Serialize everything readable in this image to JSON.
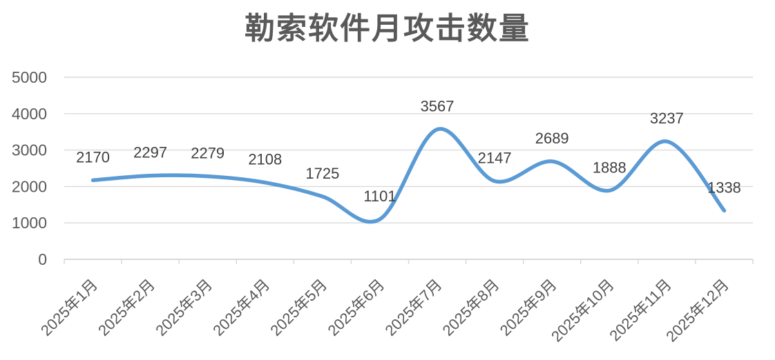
{
  "chart_data": {
    "type": "line",
    "title": "勒索软件月攻击数量",
    "categories": [
      "2025年1月",
      "2025年2月",
      "2025年3月",
      "2025年4月",
      "2025年5月",
      "2025年6月",
      "2025年7月",
      "2025年8月",
      "2025年9月",
      "2025年10月",
      "2025年11月",
      "2025年12月"
    ],
    "values": [
      2170,
      2297,
      2279,
      2108,
      1725,
      1101,
      3567,
      2147,
      2689,
      1888,
      3237,
      1338
    ],
    "data_labels_visible": true,
    "xlabel": "",
    "ylabel": "",
    "ylim": [
      0,
      5000
    ],
    "yticks": [
      0,
      1000,
      2000,
      3000,
      4000,
      5000
    ],
    "grid": "horizontal",
    "legend": "none",
    "smoothed_line": true,
    "x_label_rotation_deg": -45,
    "colors": {
      "line": "#5B9BD5",
      "grid": "#D9D9D9",
      "axis": "#D9D9D9",
      "tick_label": "#595959",
      "data_label": "#404040",
      "title": "#595959",
      "background": "#FFFFFF"
    }
  }
}
